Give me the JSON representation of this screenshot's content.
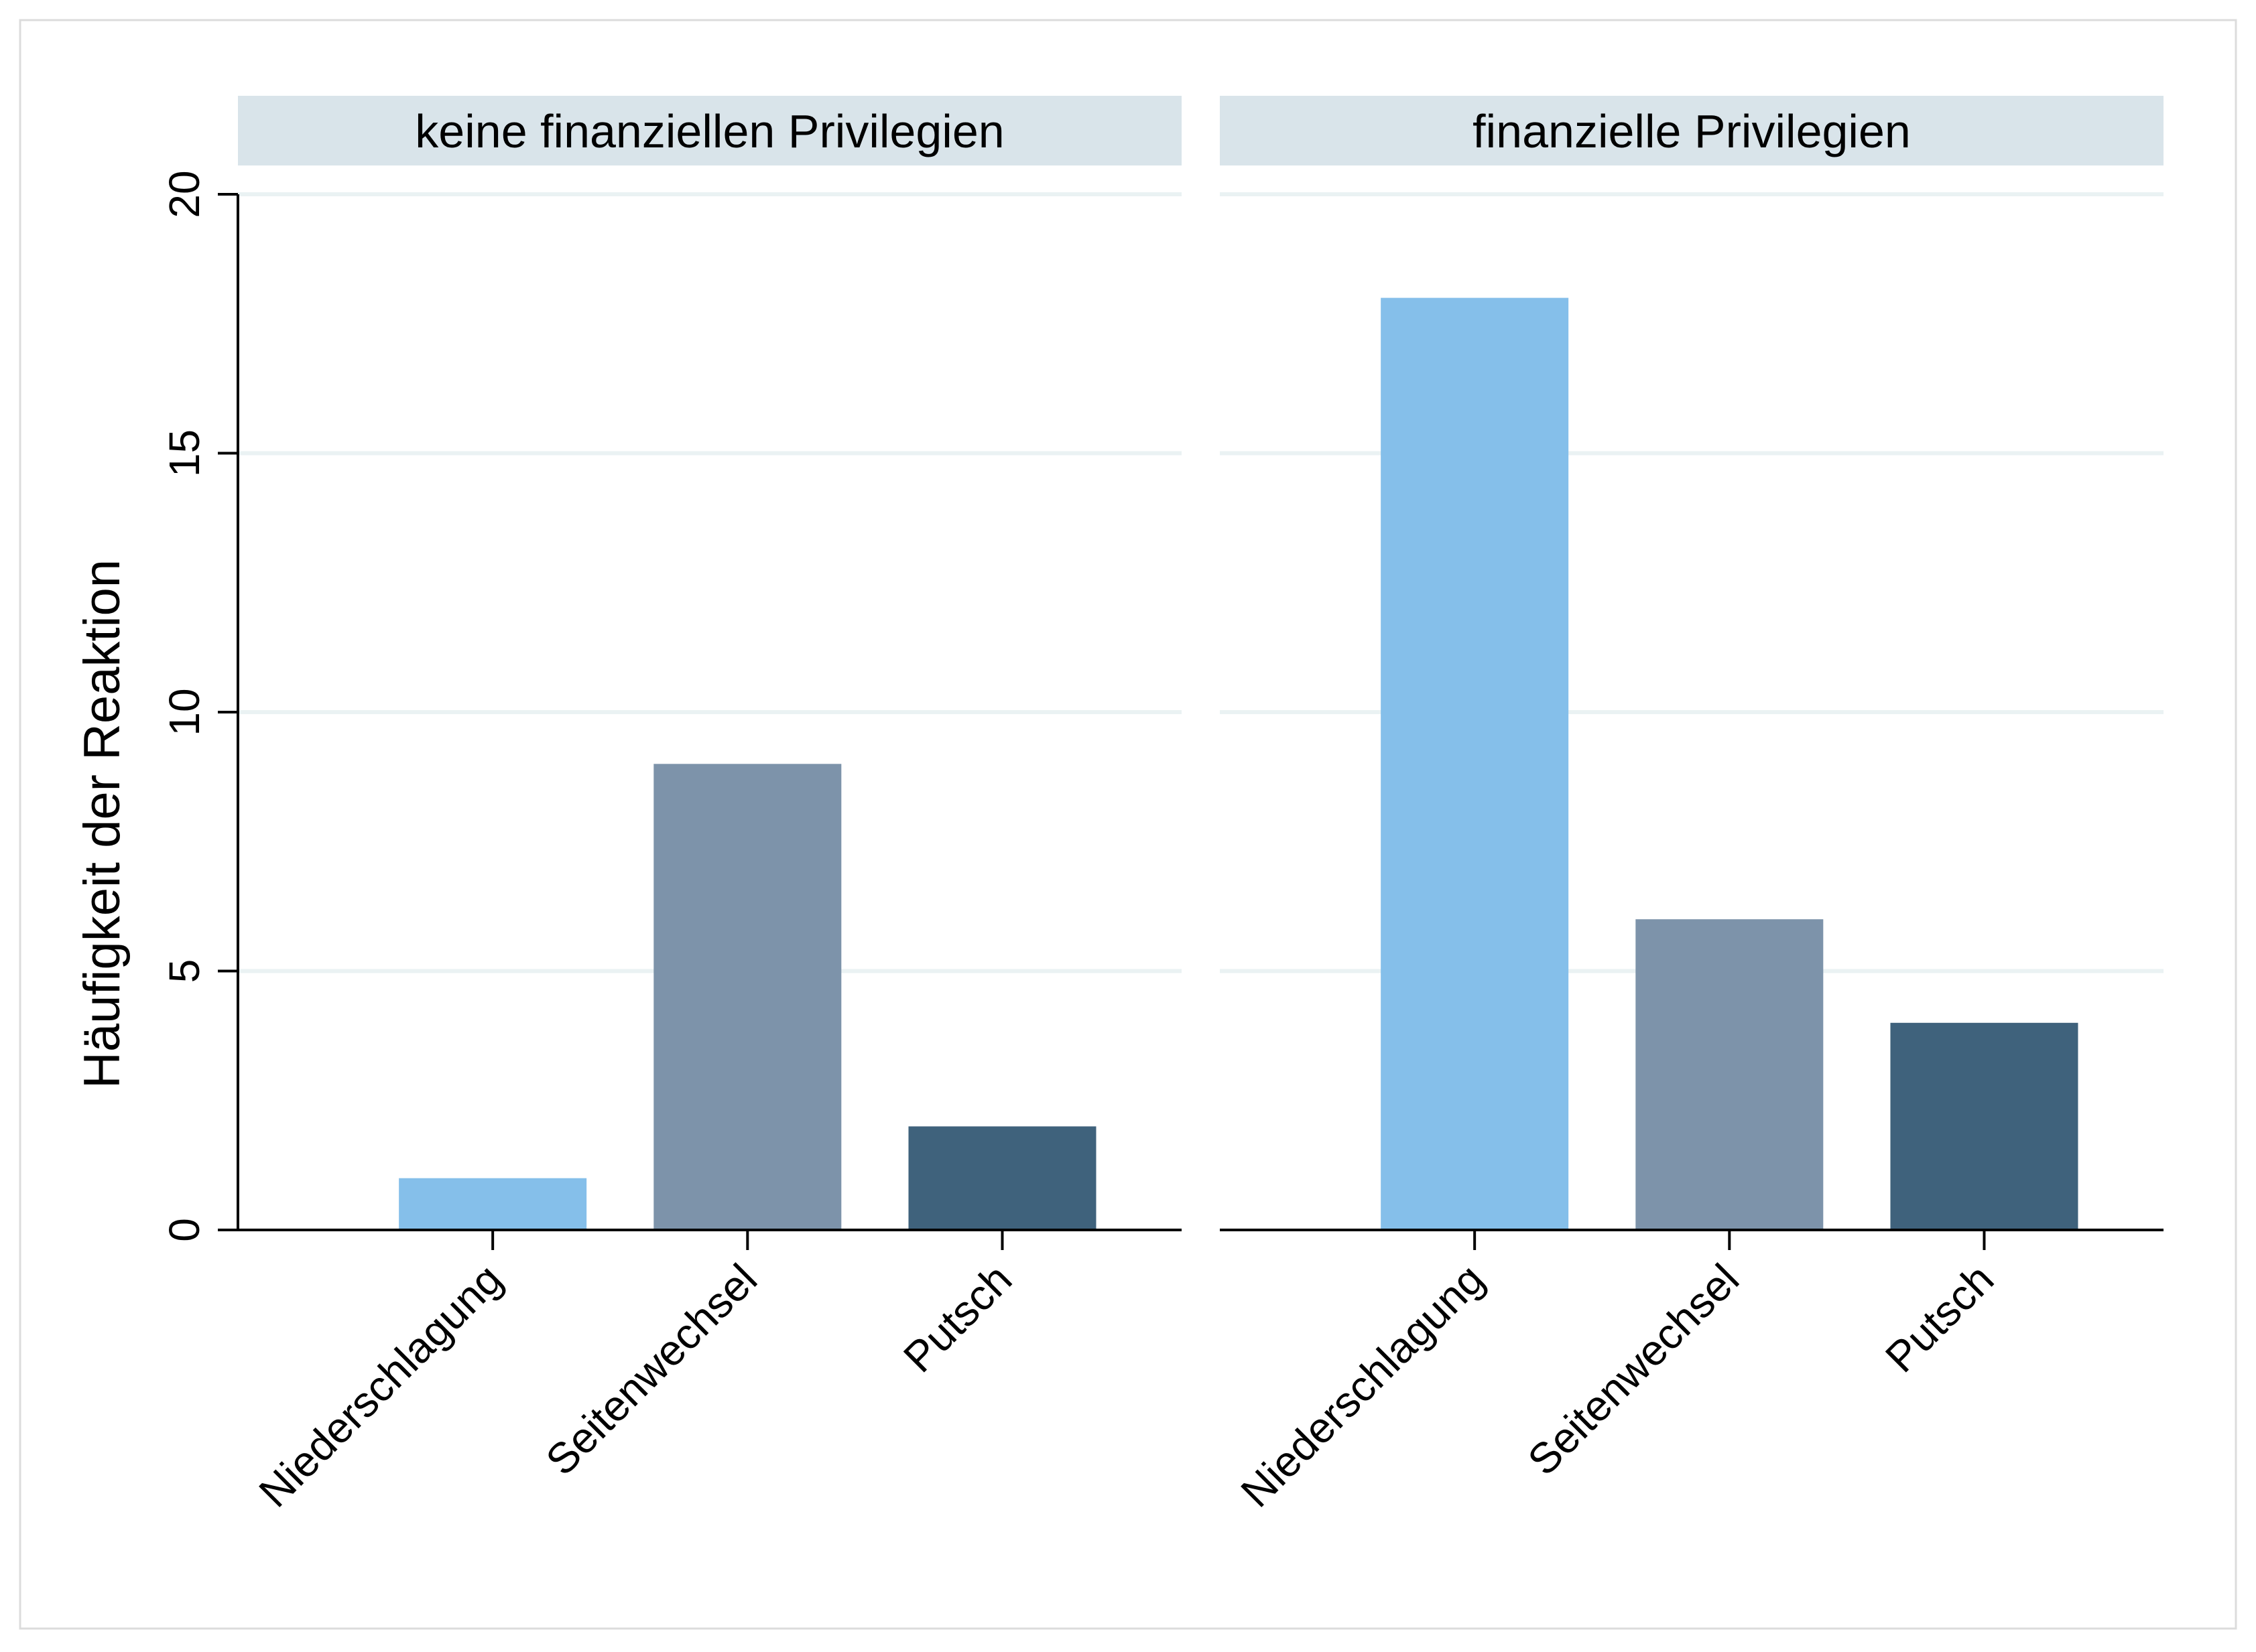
{
  "chart_data": {
    "type": "bar",
    "ylabel": "Häufigkeit der Reaktion",
    "ylim": [
      0,
      20
    ],
    "yticks": [
      0,
      5,
      10,
      15,
      20
    ],
    "grid": true,
    "categories": [
      "Niederschlagung",
      "Seitenwechsel",
      "Putsch"
    ],
    "colors": [
      "#85bfea",
      "#7d93aa",
      "#3f627c"
    ],
    "panels": [
      {
        "title": "keine finanziellen Privilegien",
        "values": [
          1,
          9,
          2
        ]
      },
      {
        "title": "finanzielle Privilegien",
        "values": [
          18,
          6,
          4
        ]
      }
    ]
  }
}
